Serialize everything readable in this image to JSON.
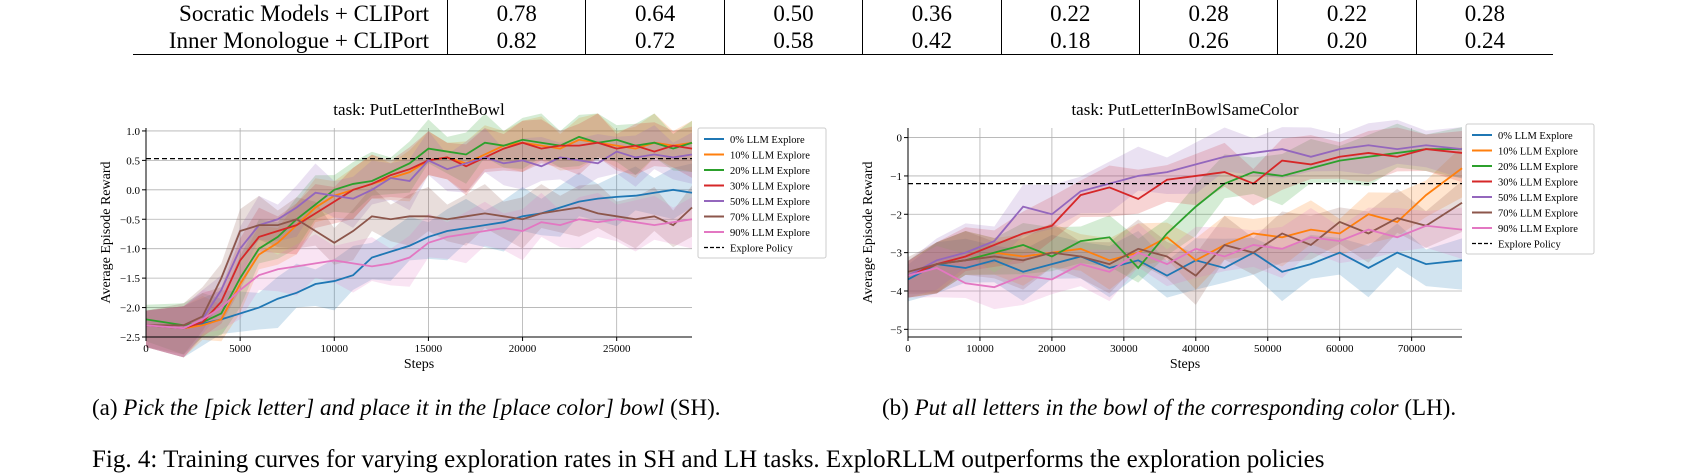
{
  "table": {
    "rows": [
      {
        "label": "Socratic Models + CLIPort",
        "values": [
          "0.78",
          "0.64",
          "0.50",
          "0.36",
          "0.22",
          "0.28",
          "0.22",
          "0.28"
        ]
      },
      {
        "label": "Inner Monologue + CLIPort",
        "values": [
          "0.82",
          "0.72",
          "0.58",
          "0.42",
          "0.18",
          "0.26",
          "0.20",
          "0.24"
        ]
      }
    ]
  },
  "chart_data": [
    {
      "type": "line",
      "title": "task: PutLetterIntheBowl",
      "xlabel": "Steps",
      "ylabel": "Average Episode Reward",
      "xlim": [
        0,
        29000
      ],
      "ylim": [
        -2.5,
        1.05
      ],
      "xticks": [
        0,
        5000,
        10000,
        15000,
        20000,
        25000
      ],
      "yticks": [
        -2.5,
        -2.0,
        -1.5,
        -1.0,
        -0.5,
        0.0,
        0.5,
        1.0
      ],
      "ytick_labels": [
        "−2.5",
        "−2.0",
        "−1.5",
        "−1.0",
        "−0.5",
        "0.0",
        "0.5",
        "1.0"
      ],
      "grid": true,
      "legend_position": "right",
      "explore_policy": 0.53,
      "series": [
        {
          "name": "0% LLM Explore",
          "color": "#1f77b4",
          "x": [
            0,
            2000,
            4000,
            6000,
            7000,
            8000,
            9000,
            10000,
            11000,
            12000,
            13000,
            14000,
            15000,
            16000,
            17000,
            18000,
            19000,
            20000,
            21000,
            22000,
            23000,
            24000,
            25000,
            26000,
            27000,
            28000,
            29000
          ],
          "y": [
            -2.3,
            -2.35,
            -2.2,
            -2.0,
            -1.85,
            -1.75,
            -1.6,
            -1.55,
            -1.45,
            -1.15,
            -1.05,
            -0.95,
            -0.8,
            -0.7,
            -0.65,
            -0.6,
            -0.55,
            -0.45,
            -0.4,
            -0.3,
            -0.2,
            -0.15,
            -0.12,
            -0.1,
            -0.05,
            0.0,
            -0.05
          ]
        },
        {
          "name": "10% LLM Explore",
          "color": "#ff7f0e",
          "x": [
            0,
            2000,
            3000,
            4000,
            5000,
            6000,
            7000,
            8000,
            9000,
            10000,
            11000,
            12000,
            13000,
            14000,
            15000,
            16000,
            17000,
            18000,
            19000,
            20000,
            21000,
            22000,
            23000,
            24000,
            25000,
            26000,
            27000,
            28000,
            29000
          ],
          "y": [
            -2.3,
            -2.35,
            -2.3,
            -2.2,
            -1.6,
            -1.1,
            -0.9,
            -0.6,
            -0.3,
            -0.1,
            0.0,
            0.1,
            0.2,
            0.3,
            0.5,
            0.55,
            0.45,
            0.6,
            0.75,
            0.8,
            0.75,
            0.7,
            0.85,
            0.8,
            0.75,
            0.7,
            0.8,
            0.75,
            0.8
          ]
        },
        {
          "name": "20% LLM Explore",
          "color": "#2ca02c",
          "x": [
            0,
            2000,
            3000,
            4000,
            5000,
            6000,
            7000,
            8000,
            9000,
            10000,
            11000,
            12000,
            13000,
            14000,
            15000,
            16000,
            17000,
            18000,
            19000,
            20000,
            21000,
            22000,
            23000,
            24000,
            25000,
            26000,
            27000,
            28000,
            29000
          ],
          "y": [
            -2.2,
            -2.3,
            -2.25,
            -2.1,
            -1.5,
            -1.0,
            -0.8,
            -0.5,
            -0.25,
            0.0,
            0.1,
            0.15,
            0.3,
            0.45,
            0.7,
            0.65,
            0.6,
            0.8,
            0.75,
            0.85,
            0.8,
            0.75,
            0.9,
            0.8,
            0.85,
            0.75,
            0.8,
            0.7,
            0.8
          ]
        },
        {
          "name": "30% LLM Explore",
          "color": "#d62728",
          "x": [
            0,
            2000,
            3000,
            4000,
            5000,
            6000,
            7000,
            8000,
            9000,
            10000,
            11000,
            12000,
            13000,
            14000,
            15000,
            16000,
            17000,
            18000,
            19000,
            20000,
            21000,
            22000,
            23000,
            24000,
            25000,
            26000,
            27000,
            28000,
            29000
          ],
          "y": [
            -2.3,
            -2.35,
            -2.25,
            -1.9,
            -1.2,
            -0.8,
            -0.7,
            -0.6,
            -0.4,
            -0.2,
            0.0,
            0.1,
            0.25,
            0.35,
            0.5,
            0.55,
            0.4,
            0.55,
            0.7,
            0.8,
            0.7,
            0.75,
            0.75,
            0.8,
            0.7,
            0.75,
            0.65,
            0.75,
            0.7
          ]
        },
        {
          "name": "50% LLM Explore",
          "color": "#9467bd",
          "x": [
            0,
            2000,
            3000,
            4000,
            5000,
            6000,
            7000,
            8000,
            9000,
            10000,
            11000,
            12000,
            13000,
            14000,
            15000,
            16000,
            17000,
            18000,
            19000,
            20000,
            21000,
            22000,
            23000,
            24000,
            25000,
            26000,
            27000,
            28000,
            29000
          ],
          "y": [
            -2.3,
            -2.35,
            -2.2,
            -1.7,
            -1.0,
            -0.6,
            -0.5,
            -0.3,
            -0.05,
            -0.1,
            -0.15,
            0.0,
            0.2,
            0.15,
            0.5,
            0.35,
            0.45,
            0.55,
            0.45,
            0.5,
            0.4,
            0.55,
            0.5,
            0.45,
            0.65,
            0.55,
            0.6,
            0.55,
            0.6
          ]
        },
        {
          "name": "70% LLM Explore",
          "color": "#8c564b",
          "x": [
            0,
            2000,
            3000,
            4000,
            5000,
            6000,
            7000,
            8000,
            9000,
            10000,
            11000,
            12000,
            13000,
            14000,
            15000,
            16000,
            17000,
            18000,
            19000,
            20000,
            21000,
            22000,
            23000,
            24000,
            25000,
            26000,
            27000,
            28000,
            29000
          ],
          "y": [
            -2.3,
            -2.3,
            -2.15,
            -1.5,
            -0.7,
            -0.6,
            -0.6,
            -0.5,
            -0.7,
            -0.9,
            -0.7,
            -0.45,
            -0.5,
            -0.45,
            -0.45,
            -0.5,
            -0.45,
            -0.4,
            -0.45,
            -0.5,
            -0.4,
            -0.35,
            -0.3,
            -0.4,
            -0.45,
            -0.5,
            -0.45,
            -0.6,
            -0.3
          ]
        },
        {
          "name": "90% LLM Explore",
          "color": "#e377c2",
          "x": [
            0,
            2000,
            3000,
            4000,
            5000,
            6000,
            7000,
            8000,
            9000,
            10000,
            11000,
            12000,
            13000,
            14000,
            15000,
            16000,
            17000,
            18000,
            19000,
            20000,
            21000,
            22000,
            23000,
            24000,
            25000,
            26000,
            27000,
            28000,
            29000
          ],
          "y": [
            -2.3,
            -2.35,
            -2.2,
            -2.0,
            -1.7,
            -1.45,
            -1.35,
            -1.3,
            -1.25,
            -1.2,
            -1.25,
            -1.3,
            -1.25,
            -1.15,
            -0.9,
            -0.8,
            -0.75,
            -0.7,
            -0.65,
            -0.7,
            -0.55,
            -0.6,
            -0.5,
            -0.55,
            -0.5,
            -0.55,
            -0.6,
            -0.55,
            -0.5
          ]
        }
      ],
      "caption": {
        "prefix": "(a) ",
        "italic": "Pick the [pick letter] and place it in the [place color] bowl",
        "suffix": " (SH)."
      }
    },
    {
      "type": "line",
      "title": "task: PutLetterInBowlSameColor",
      "xlabel": "Steps",
      "ylabel": "Average Episode Reward",
      "xlim": [
        0,
        77000
      ],
      "ylim": [
        -5.2,
        0.25
      ],
      "xticks": [
        0,
        10000,
        20000,
        30000,
        40000,
        50000,
        60000,
        70000
      ],
      "yticks": [
        -5,
        -4,
        -3,
        -2,
        -1,
        0
      ],
      "ytick_labels": [
        "−5",
        "−4",
        "−3",
        "−2",
        "−1",
        "0"
      ],
      "grid": true,
      "legend_position": "right",
      "explore_policy": -1.2,
      "series": [
        {
          "name": "0% LLM Explore",
          "color": "#1f77b4",
          "x": [
            0,
            4000,
            8000,
            12000,
            16000,
            20000,
            24000,
            28000,
            32000,
            36000,
            40000,
            44000,
            48000,
            52000,
            56000,
            60000,
            64000,
            68000,
            72000,
            77000
          ],
          "y": [
            -3.7,
            -3.3,
            -3.4,
            -3.2,
            -3.5,
            -3.3,
            -3.1,
            -3.4,
            -3.2,
            -3.6,
            -3.2,
            -3.4,
            -3.0,
            -3.5,
            -3.3,
            -3.0,
            -3.4,
            -3.0,
            -3.3,
            -3.2
          ]
        },
        {
          "name": "10% LLM Explore",
          "color": "#ff7f0e",
          "x": [
            0,
            4000,
            8000,
            12000,
            16000,
            20000,
            24000,
            28000,
            32000,
            36000,
            40000,
            44000,
            48000,
            52000,
            56000,
            60000,
            64000,
            68000,
            72000,
            77000
          ],
          "y": [
            -3.6,
            -3.3,
            -3.2,
            -3.0,
            -3.1,
            -3.0,
            -2.9,
            -3.2,
            -3.0,
            -2.6,
            -3.2,
            -2.8,
            -2.5,
            -2.6,
            -2.4,
            -2.5,
            -2.0,
            -2.2,
            -1.5,
            -0.8
          ]
        },
        {
          "name": "20% LLM Explore",
          "color": "#2ca02c",
          "x": [
            0,
            4000,
            8000,
            12000,
            16000,
            20000,
            24000,
            28000,
            32000,
            36000,
            40000,
            44000,
            48000,
            52000,
            56000,
            60000,
            64000,
            68000,
            72000,
            77000
          ],
          "y": [
            -3.6,
            -3.3,
            -3.2,
            -3.0,
            -2.8,
            -3.1,
            -2.7,
            -2.6,
            -3.4,
            -2.5,
            -1.8,
            -1.2,
            -0.9,
            -1.0,
            -0.8,
            -0.6,
            -0.5,
            -0.4,
            -0.3,
            -0.3
          ]
        },
        {
          "name": "30% LLM Explore",
          "color": "#d62728",
          "x": [
            0,
            4000,
            8000,
            12000,
            16000,
            20000,
            24000,
            28000,
            32000,
            36000,
            40000,
            44000,
            48000,
            52000,
            56000,
            60000,
            64000,
            68000,
            72000,
            77000
          ],
          "y": [
            -3.6,
            -3.3,
            -3.1,
            -2.8,
            -2.5,
            -2.3,
            -1.5,
            -1.3,
            -1.6,
            -1.1,
            -1.0,
            -0.9,
            -1.2,
            -0.6,
            -0.7,
            -0.5,
            -0.4,
            -0.5,
            -0.3,
            -0.4
          ]
        },
        {
          "name": "50% LLM Explore",
          "color": "#9467bd",
          "x": [
            0,
            4000,
            8000,
            12000,
            16000,
            20000,
            24000,
            28000,
            32000,
            36000,
            40000,
            44000,
            48000,
            52000,
            56000,
            60000,
            64000,
            68000,
            72000,
            77000
          ],
          "y": [
            -3.6,
            -3.2,
            -3.0,
            -2.7,
            -1.8,
            -2.0,
            -1.4,
            -1.2,
            -1.0,
            -0.9,
            -0.7,
            -0.5,
            -0.4,
            -0.3,
            -0.5,
            -0.3,
            -0.2,
            -0.3,
            -0.2,
            -0.3
          ]
        },
        {
          "name": "70% LLM Explore",
          "color": "#8c564b",
          "x": [
            0,
            4000,
            8000,
            12000,
            16000,
            20000,
            24000,
            28000,
            32000,
            36000,
            40000,
            44000,
            48000,
            52000,
            56000,
            60000,
            64000,
            68000,
            72000,
            77000
          ],
          "y": [
            -3.5,
            -3.3,
            -3.2,
            -3.1,
            -3.2,
            -3.0,
            -3.1,
            -3.3,
            -2.9,
            -3.1,
            -3.6,
            -2.8,
            -3.0,
            -2.5,
            -2.8,
            -2.2,
            -2.5,
            -2.1,
            -2.3,
            -1.7
          ]
        },
        {
          "name": "90% LLM Explore",
          "color": "#e377c2",
          "x": [
            0,
            4000,
            8000,
            12000,
            16000,
            20000,
            24000,
            28000,
            32000,
            36000,
            40000,
            44000,
            48000,
            52000,
            56000,
            60000,
            64000,
            68000,
            72000,
            77000
          ],
          "y": [
            -3.6,
            -3.4,
            -3.8,
            -3.9,
            -3.6,
            -3.7,
            -3.3,
            -3.5,
            -3.0,
            -3.3,
            -2.9,
            -3.1,
            -2.8,
            -2.9,
            -2.6,
            -2.7,
            -2.4,
            -2.6,
            -2.3,
            -2.4
          ]
        }
      ],
      "caption": {
        "prefix": "(b) ",
        "italic": "Put all letters in the bowl of the corresponding color",
        "suffix": " (LH)."
      }
    }
  ],
  "legend_extra": "Explore Policy",
  "figure_caption": "Fig. 4: Training curves for varying exploration rates in SH and LH tasks. ExploRLLM outperforms the exploration policies"
}
